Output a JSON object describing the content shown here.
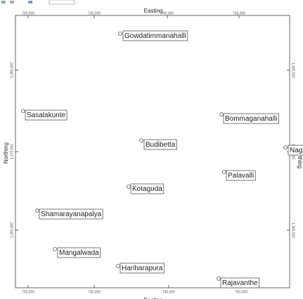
{
  "map": {
    "axis_titles": {
      "top": "Easting",
      "bottom": "Easting",
      "left": "Northing",
      "right": "Northing"
    },
    "easting_ticks": [
      "720,000",
      "730,000",
      "740,000",
      "750,000"
    ],
    "northing_ticks": [
      "1,380,000",
      "1,370,000",
      "1,360,000"
    ],
    "places": [
      "Gowdatimmanahalli",
      "Sasalakunte",
      "Bommaganahalli",
      "Budibetta",
      "Nag",
      "Palavalli",
      "Kotaguda",
      "Shamarayanapalya",
      "Mangalwada",
      "Hariharapura",
      "Rajavanthe"
    ]
  }
}
